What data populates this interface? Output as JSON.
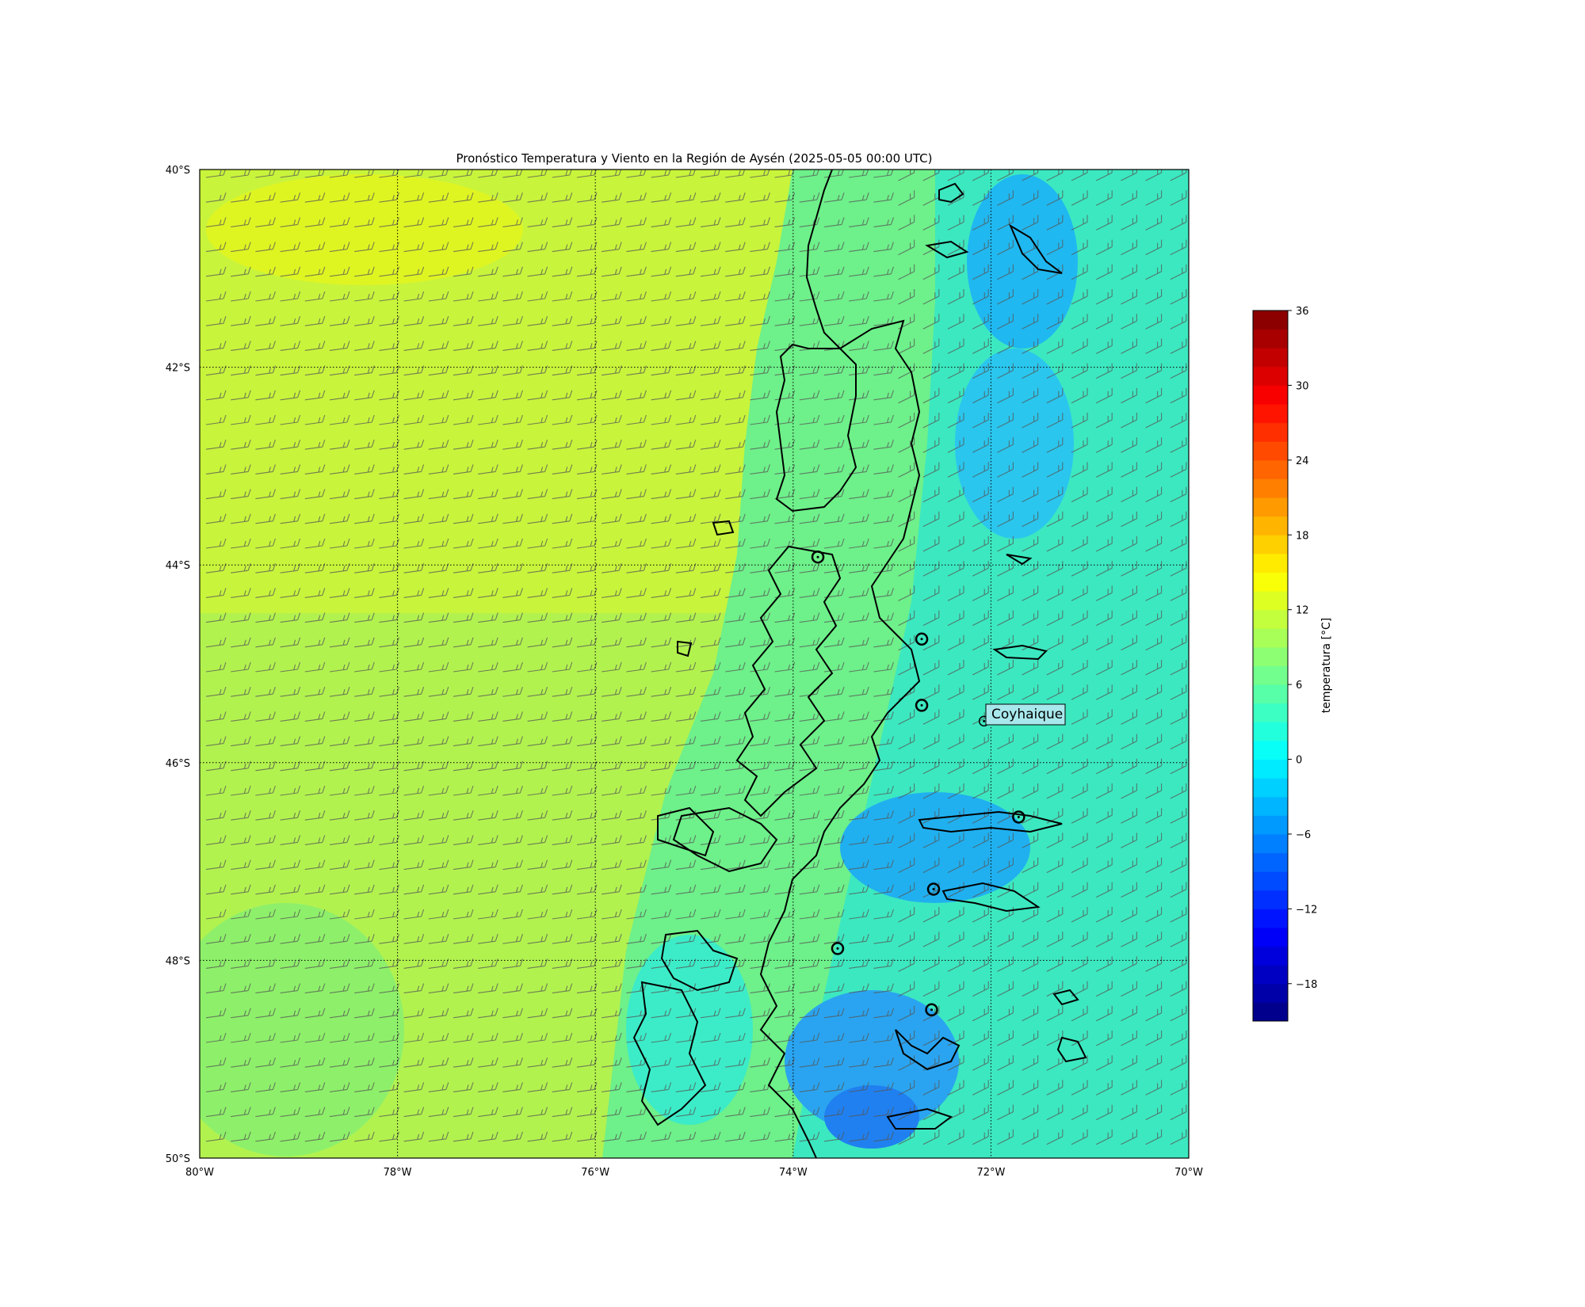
{
  "title": "Pronóstico Temperatura y Viento en la Región de Aysén (2025-05-05 00:00 UTC)",
  "map": {
    "lon_range": [
      -80,
      -70
    ],
    "lat_range": [
      -50,
      -40
    ],
    "lon_ticks": [
      {
        "value": -80,
        "label": "80°W"
      },
      {
        "value": -78,
        "label": "78°W"
      },
      {
        "value": -76,
        "label": "76°W"
      },
      {
        "value": -74,
        "label": "74°W"
      },
      {
        "value": -72,
        "label": "72°W"
      },
      {
        "value": -70,
        "label": "70°W"
      }
    ],
    "lat_ticks": [
      {
        "value": -40,
        "label": "40°S"
      },
      {
        "value": -42,
        "label": "42°S"
      },
      {
        "value": -44,
        "label": "44°S"
      },
      {
        "value": -46,
        "label": "46°S"
      },
      {
        "value": -48,
        "label": "48°S"
      },
      {
        "value": -50,
        "label": "50°S"
      }
    ],
    "gridlines": "dotted",
    "wind_barbs": true
  },
  "stations": [
    {
      "lon": -73.75,
      "lat": -43.92
    },
    {
      "lon": -72.7,
      "lat": -44.75
    },
    {
      "lon": -72.7,
      "lat": -45.42
    },
    {
      "lon": -72.07,
      "lat": -45.58,
      "label": "Coyhaique"
    },
    {
      "lon": -71.72,
      "lat": -46.55
    },
    {
      "lon": -72.58,
      "lat": -47.28
    },
    {
      "lon": -73.55,
      "lat": -47.88
    },
    {
      "lon": -72.6,
      "lat": -48.5
    }
  ],
  "colorbar": {
    "label": "temperatura [°C]",
    "min": -21,
    "max": 36,
    "step": 1.5,
    "ticks": [
      {
        "value": 36,
        "label": "36"
      },
      {
        "value": 30,
        "label": "30"
      },
      {
        "value": 24,
        "label": "24"
      },
      {
        "value": 18,
        "label": "18"
      },
      {
        "value": 12,
        "label": "12"
      },
      {
        "value": 6,
        "label": "6"
      },
      {
        "value": 0,
        "label": "0"
      },
      {
        "value": -6,
        "label": "−6"
      },
      {
        "value": -12,
        "label": "−12"
      },
      {
        "value": -18,
        "label": "−18"
      }
    ],
    "colormap": "jet"
  }
}
